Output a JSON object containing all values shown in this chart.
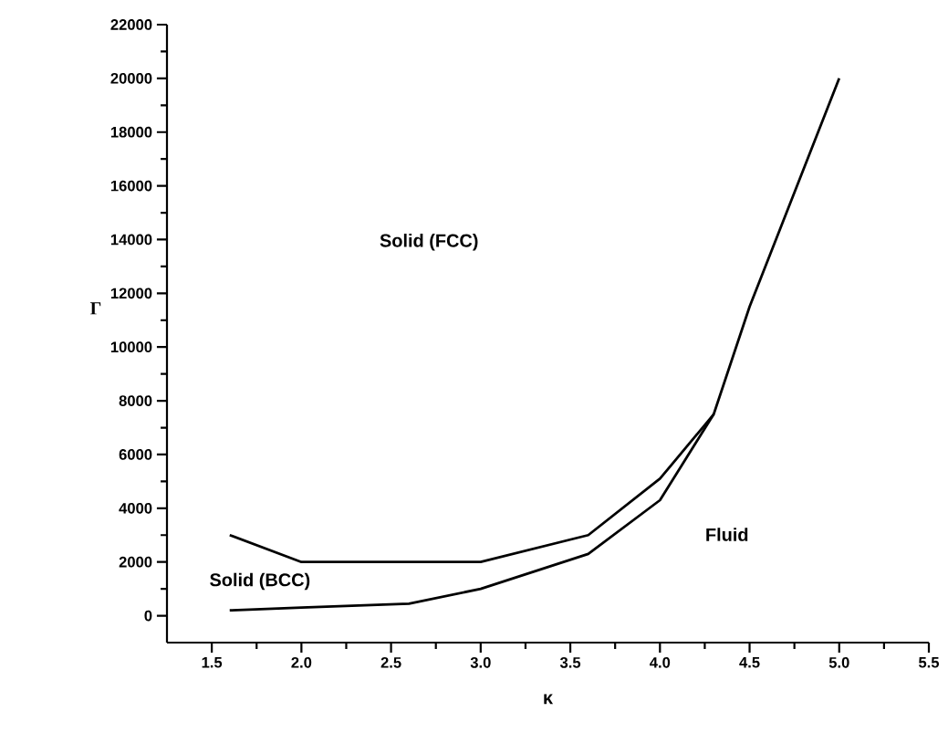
{
  "chart_data": {
    "type": "line",
    "xlabel": "κ",
    "ylabel": "Γ",
    "xlim": [
      1.25,
      5.5
    ],
    "ylim": [
      -1000,
      22000
    ],
    "xticks": [
      {
        "value": 1.5,
        "label": "1.5"
      },
      {
        "value": 2.0,
        "label": "2.0"
      },
      {
        "value": 2.5,
        "label": "2.5"
      },
      {
        "value": 3.0,
        "label": "3.0"
      },
      {
        "value": 3.5,
        "label": "3.5"
      },
      {
        "value": 4.0,
        "label": "4.0"
      },
      {
        "value": 4.5,
        "label": "4.5"
      },
      {
        "value": 5.0,
        "label": "5.0"
      },
      {
        "value": 5.5,
        "label": "5.5"
      }
    ],
    "yticks": [
      0,
      2000,
      4000,
      6000,
      8000,
      10000,
      12000,
      14000,
      16000,
      18000,
      20000,
      22000
    ],
    "grid": false,
    "marker": "none",
    "line_style": "solid",
    "series": [
      {
        "color": "#000000",
        "x": [
          1.6,
          2.0,
          3.0,
          3.6,
          4.0,
          4.3
        ],
        "values": [
          3000,
          2000,
          2000,
          3000,
          5100,
          7500
        ]
      },
      {
        "color": "#000000",
        "x": [
          1.6,
          2.0,
          2.6,
          3.0,
          3.6,
          4.0,
          4.3,
          4.5,
          5.0
        ],
        "values": [
          200,
          300,
          450,
          1000,
          2300,
          4300,
          7500,
          11500,
          20000
        ]
      }
    ],
    "annotations": [
      "Solid (FCC)",
      "Solid (BCC)",
      "Fluid"
    ]
  }
}
